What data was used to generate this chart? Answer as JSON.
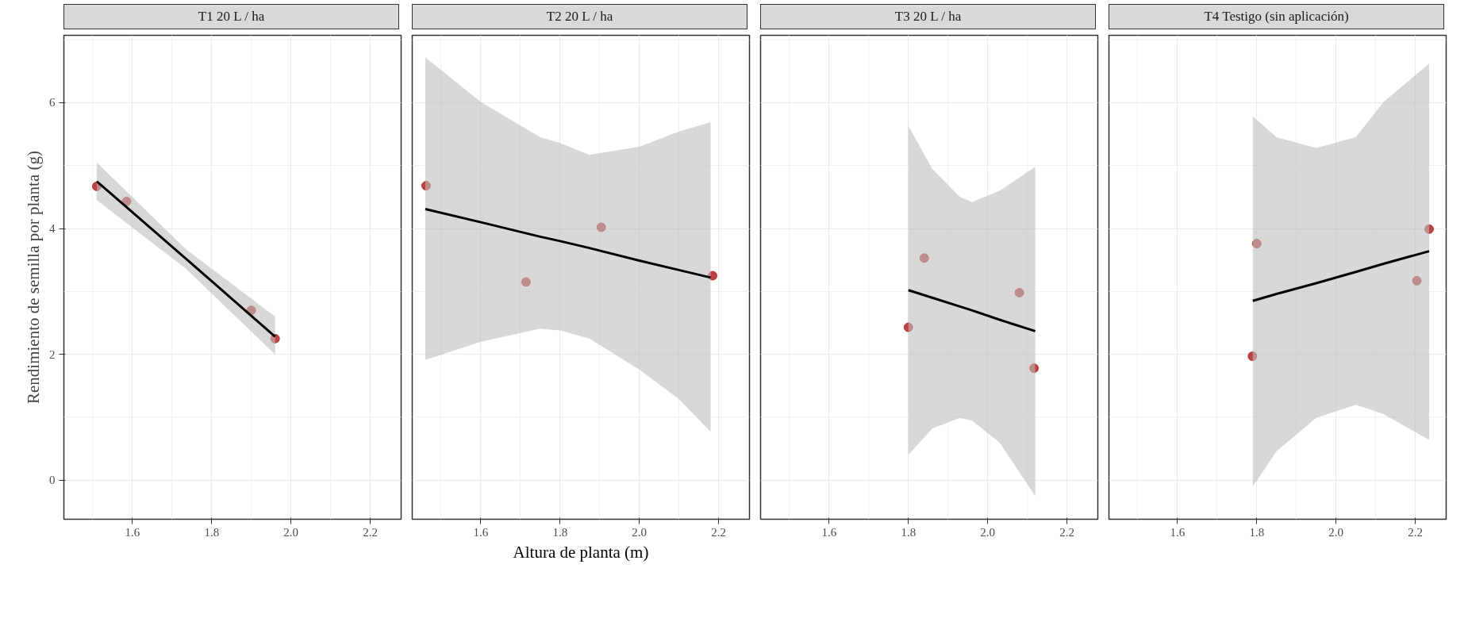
{
  "chart_data": [
    {
      "type": "scatter",
      "title": "T1 20 L / ha",
      "ylabel": "Rendimiento de semilla por planta (g)",
      "xlim": [
        1.427,
        2.278
      ],
      "ylim": [
        -0.62,
        7.07
      ],
      "xticks": [
        {
          "value": 1.6,
          "label": "1.6"
        },
        {
          "value": 1.8,
          "label": "1.8"
        },
        {
          "value": 2,
          "label": "2.0"
        },
        {
          "value": 2.2,
          "label": "2.2"
        }
      ],
      "yticks": [
        0,
        2,
        4,
        6
      ],
      "grid": true,
      "series": [
        {
          "marker": "circle",
          "color": "#b22222",
          "x": [
            1.51,
            1.585,
            1.9,
            1.96
          ],
          "values": [
            4.67,
            4.43,
            2.7,
            2.25
          ]
        },
        {
          "type": "line",
          "marker": "none",
          "color": "#000000",
          "x": [
            1.51,
            1.735,
            1.96
          ],
          "values": [
            4.75,
            3.52,
            2.28
          ],
          "lower": [
            4.45,
            3.36,
            2.0
          ],
          "upper": [
            5.05,
            3.67,
            2.6
          ]
        }
      ]
    },
    {
      "type": "scatter",
      "title": "T2 20 L / ha",
      "xlabel": "Altura de planta (m)",
      "xlim": [
        1.427,
        2.278
      ],
      "ylim": [
        -0.62,
        7.07
      ],
      "xticks": [
        {
          "value": 1.6,
          "label": "1.6"
        },
        {
          "value": 1.8,
          "label": "1.8"
        },
        {
          "value": 2,
          "label": "2.0"
        },
        {
          "value": 2.2,
          "label": "2.2"
        }
      ],
      "yticks": [
        0,
        2,
        4,
        6
      ],
      "tick_labels": "x",
      "grid": true,
      "series": [
        {
          "marker": "circle",
          "color": "#b22222",
          "x": [
            1.462,
            1.714,
            1.904,
            2.185
          ],
          "values": [
            4.68,
            3.15,
            4.02,
            3.25
          ]
        },
        {
          "type": "line",
          "marker": "none",
          "color": "#000000",
          "x": [
            1.46,
            1.6,
            1.75,
            1.8,
            1.874,
            2.0,
            2.1,
            2.18
          ],
          "values": [
            4.31,
            4.1,
            3.87,
            3.8,
            3.69,
            3.49,
            3.34,
            3.22
          ],
          "lower": [
            1.91,
            2.2,
            2.41,
            2.38,
            2.25,
            1.76,
            1.29,
            0.77
          ],
          "upper": [
            6.72,
            6.01,
            5.45,
            5.36,
            5.17,
            5.3,
            5.54,
            5.69
          ]
        }
      ]
    },
    {
      "type": "scatter",
      "title": "T3 20 L / ha",
      "xlim": [
        1.427,
        2.278
      ],
      "ylim": [
        -0.62,
        7.07
      ],
      "xticks": [
        {
          "value": 1.6,
          "label": "1.6"
        },
        {
          "value": 1.8,
          "label": "1.8"
        },
        {
          "value": 2,
          "label": "2.0"
        },
        {
          "value": 2.2,
          "label": "2.2"
        }
      ],
      "yticks": [
        0,
        2,
        4,
        6
      ],
      "tick_labels": "x",
      "grid": true,
      "series": [
        {
          "marker": "circle",
          "color": "#b22222",
          "x": [
            1.8,
            1.84,
            2.08,
            2.117
          ],
          "values": [
            2.43,
            3.53,
            2.98,
            1.78
          ]
        },
        {
          "type": "line",
          "marker": "none",
          "color": "#000000",
          "x": [
            1.8,
            1.86,
            1.93,
            1.96,
            2.03,
            2.12
          ],
          "values": [
            3.02,
            2.9,
            2.76,
            2.7,
            2.55,
            2.37
          ],
          "lower": [
            0.4,
            0.82,
            0.99,
            0.95,
            0.6,
            -0.25
          ],
          "upper": [
            5.63,
            4.95,
            4.5,
            4.42,
            4.6,
            4.98
          ]
        }
      ]
    },
    {
      "type": "scatter",
      "title": "T4 Testigo (sin aplicación)",
      "xlim": [
        1.427,
        2.278
      ],
      "ylim": [
        -0.62,
        7.07
      ],
      "xticks": [
        {
          "value": 1.6,
          "label": "1.6"
        },
        {
          "value": 1.8,
          "label": "1.8"
        },
        {
          "value": 2,
          "label": "2.0"
        },
        {
          "value": 2.2,
          "label": "2.2"
        }
      ],
      "yticks": [
        0,
        2,
        4,
        6
      ],
      "tick_labels": "x",
      "grid": true,
      "series": [
        {
          "marker": "circle",
          "color": "#b22222",
          "x": [
            1.789,
            1.8,
            2.204,
            2.235
          ],
          "values": [
            1.97,
            3.76,
            3.17,
            3.99
          ]
        },
        {
          "type": "line",
          "marker": "none",
          "color": "#000000",
          "x": [
            1.79,
            1.85,
            1.95,
            2.05,
            2.12,
            2.235
          ],
          "values": [
            2.85,
            2.96,
            3.13,
            3.31,
            3.44,
            3.64
          ],
          "lower": [
            -0.1,
            0.46,
            0.99,
            1.2,
            1.05,
            0.64
          ],
          "upper": [
            5.78,
            5.45,
            5.28,
            5.45,
            6.01,
            6.62
          ]
        }
      ]
    }
  ]
}
